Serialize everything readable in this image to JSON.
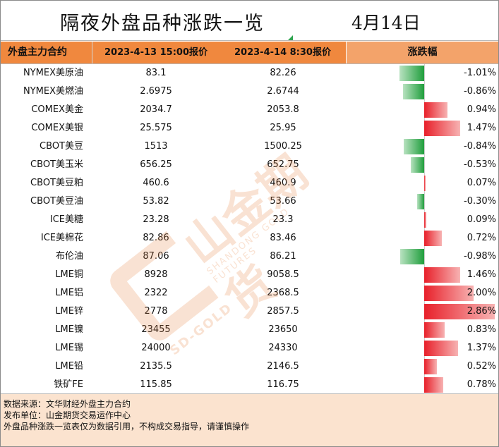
{
  "title": "隔夜外盘品种涨跌一览",
  "date": "4月14日",
  "header": {
    "col_name": "外盘主力合约",
    "col_prev": "2023-4-13 15:00报价",
    "col_curr": "2023-4-14 8:30报价",
    "col_change": "涨跌幅"
  },
  "rows": [
    {
      "name": "NYMEX美原油",
      "prev": "83.1",
      "curr": "82.26",
      "change": "-1.01%",
      "value": -1.01
    },
    {
      "name": "NYMEX美燃油",
      "prev": "2.6975",
      "curr": "2.6744",
      "change": "-0.86%",
      "value": -0.86
    },
    {
      "name": "COMEX美金",
      "prev": "2034.7",
      "curr": "2053.8",
      "change": "0.94%",
      "value": 0.94
    },
    {
      "name": "COMEX美银",
      "prev": "25.575",
      "curr": "25.95",
      "change": "1.47%",
      "value": 1.47
    },
    {
      "name": "CBOT美豆",
      "prev": "1513",
      "curr": "1500.25",
      "change": "-0.84%",
      "value": -0.84
    },
    {
      "name": "CBOT美玉米",
      "prev": "656.25",
      "curr": "652.75",
      "change": "-0.53%",
      "value": -0.53
    },
    {
      "name": "CBOT美豆粕",
      "prev": "460.6",
      "curr": "460.9",
      "change": "0.07%",
      "value": 0.07
    },
    {
      "name": "CBOT美豆油",
      "prev": "53.82",
      "curr": "53.66",
      "change": "-0.30%",
      "value": -0.3
    },
    {
      "name": "ICE美糖",
      "prev": "23.28",
      "curr": "23.3",
      "change": "0.09%",
      "value": 0.09
    },
    {
      "name": "ICE美棉花",
      "prev": "82.86",
      "curr": "83.46",
      "change": "0.72%",
      "value": 0.72
    },
    {
      "name": "布伦油",
      "prev": "87.06",
      "curr": "86.21",
      "change": "-0.98%",
      "value": -0.98
    },
    {
      "name": "LME铜",
      "prev": "8928",
      "curr": "9058.5",
      "change": "1.46%",
      "value": 1.46
    },
    {
      "name": "LME铝",
      "prev": "2322",
      "curr": "2368.5",
      "change": "2.00%",
      "value": 2.0
    },
    {
      "name": "LME锌",
      "prev": "2778",
      "curr": "2857.5",
      "change": "2.86%",
      "value": 2.86
    },
    {
      "name": "LME镍",
      "prev": "23455",
      "curr": "23650",
      "change": "0.83%",
      "value": 0.83
    },
    {
      "name": "LME锡",
      "prev": "24000",
      "curr": "24330",
      "change": "1.37%",
      "value": 1.37
    },
    {
      "name": "LME铅",
      "prev": "2135.5",
      "curr": "2146.5",
      "change": "0.52%",
      "value": 0.52
    },
    {
      "name": "铁矿FE",
      "prev": "115.85",
      "curr": "116.75",
      "change": "0.78%",
      "value": 0.78
    }
  ],
  "footer": {
    "line1": "数据来源：文华财经外盘主力合约",
    "line2": "发布单位：山金期货交易运作中心",
    "line3": "外盘品种涨跌一览表仅为数据引用，不构成交易指导，请谨慎操作"
  },
  "watermark": {
    "brand_cn": "山金期货",
    "brand_en": "SHANDONG GOLD FUTURES",
    "brand_gold": "SD-GOLD"
  },
  "colors": {
    "positive": "#e8202a",
    "negative": "#1f9e3c",
    "header_bg": "#f0883e",
    "footer_bg": "#fbe3cf"
  }
}
